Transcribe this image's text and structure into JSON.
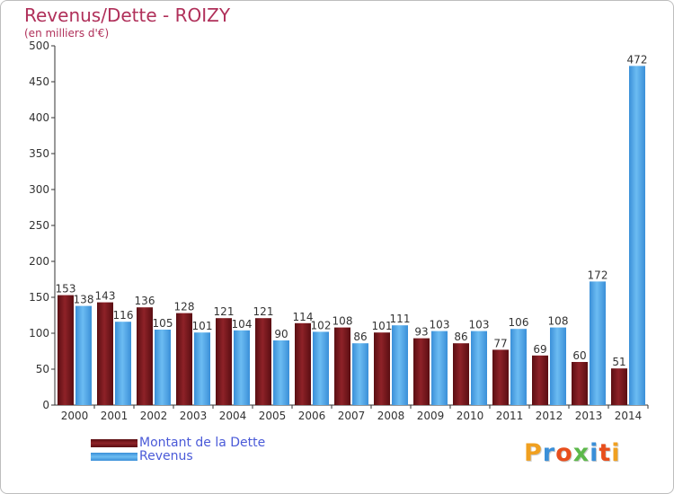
{
  "chart_data": {
    "type": "bar",
    "title": "Revenus/Dette - ROIZY",
    "subtitle": "(en milliers d'€)",
    "categories": [
      "2000",
      "2001",
      "2002",
      "2003",
      "2004",
      "2005",
      "2006",
      "2007",
      "2008",
      "2009",
      "2010",
      "2011",
      "2012",
      "2013",
      "2014"
    ],
    "series": [
      {
        "name": "Montant de la Dette",
        "values": [
          153,
          143,
          136,
          128,
          121,
          121,
          114,
          108,
          101,
          93,
          86,
          77,
          69,
          60,
          51
        ],
        "color": "#7a1a1e"
      },
      {
        "name": "Revenus",
        "values": [
          138,
          116,
          105,
          101,
          104,
          90,
          102,
          86,
          111,
          103,
          103,
          106,
          108,
          172,
          472
        ],
        "color": "#4da6e8"
      }
    ],
    "y_ticks": [
      "0",
      "50",
      "100",
      "150",
      "200",
      "250",
      "300",
      "350",
      "400",
      "450",
      "500"
    ],
    "ylim": [
      0,
      500
    ],
    "grid": false,
    "legend_position": "bottom-left"
  },
  "logo": {
    "letters": [
      "P",
      "r",
      "o",
      "x",
      "i",
      "t",
      "i"
    ],
    "colors": [
      "#f0a020",
      "#3a8fd8",
      "#e84e1c",
      "#5cb84a",
      "#3a8fd8",
      "#e84e1c",
      "#f0a020"
    ]
  }
}
